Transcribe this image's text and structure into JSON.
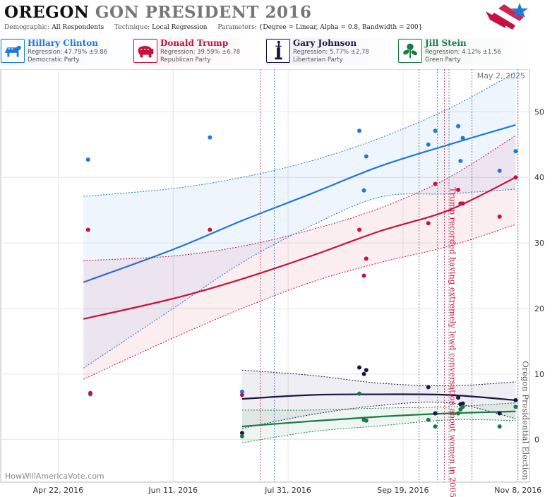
{
  "header": {
    "title_state": "OREGON",
    "title_rest": "GON PRESIDENT 2016",
    "demographic_label": "Demographic:",
    "demographic_value": "All Respondents",
    "technique_label": "Technique:",
    "technique_value": "Local Regression",
    "parameters_label": "Parameters:",
    "parameters_value": "{Degree = Linear, Alpha = 0.8, Bandwidth = 200}"
  },
  "logo_icon": "flag-star-icon",
  "candidates": [
    {
      "name": "Hillary Clinton",
      "regression": "Regression: 47.79% ±9.86",
      "party": "Democratic Party",
      "color": "#1f78d9",
      "icon": "donkey-icon"
    },
    {
      "name": "Donald Trump",
      "regression": "Regression: 39.59% ±6.78",
      "party": "Republican Party",
      "color": "#c8103e",
      "icon": "elephant-icon"
    },
    {
      "name": "Gary Johnson",
      "regression": "Regression: 5.77% ±2.78",
      "party": "Libertarian Party",
      "color": "#1a1446",
      "icon": "statue-of-liberty-icon"
    },
    {
      "name": "Jill Stein",
      "regression": "Regression: 4.12% ±1.56",
      "party": "Green Party",
      "color": "#1a7a46",
      "icon": "leaf-flower-icon"
    }
  ],
  "chart_data": {
    "type": "scatter",
    "date_label": "May 2, 2025",
    "watermark": "HowWillAmericaVote.com",
    "x_ticks": [
      "Apr 22, 2016",
      "Jun 11, 2016",
      "Jul 31, 2016",
      "Sep 19, 2016",
      "Nov 8, 2016"
    ],
    "x_tick_dates": [
      "2016-04-22",
      "2016-06-11",
      "2016-07-31",
      "2016-09-19",
      "2016-11-08"
    ],
    "x_range": [
      "2016-03-28",
      "2016-11-13"
    ],
    "y_ticks": [
      0,
      10,
      20,
      30,
      40,
      50
    ],
    "y_range": [
      -6.5,
      56.5
    ],
    "grid": true,
    "annotations": [
      {
        "text": "Trump recorded having extremely lewd conversation about women in 2005",
        "date": "2016-10-07",
        "color": "#c8103e"
      },
      {
        "text": "Oregon Presidential Election",
        "date": "2016-11-08",
        "color": "#555555"
      }
    ],
    "event_lines": [
      {
        "date": "2016-07-19",
        "color": "#c8103e"
      },
      {
        "date": "2016-07-25",
        "color": "#1f78d9"
      },
      {
        "date": "2016-09-26",
        "color": "#555555"
      },
      {
        "date": "2016-10-04",
        "color": "#555555"
      },
      {
        "date": "2016-10-07",
        "color": "#c8103e"
      },
      {
        "date": "2016-10-09",
        "color": "#555555"
      },
      {
        "date": "2016-10-19",
        "color": "#555555"
      },
      {
        "date": "2016-11-08",
        "color": "#555555"
      }
    ],
    "series": [
      {
        "name": "Hillary Clinton",
        "color": "#1f78d9",
        "points": [
          [
            "2016-05-05",
            42.7
          ],
          [
            "2016-05-06",
            6.9
          ],
          [
            "2016-06-27",
            46.1
          ],
          [
            "2016-07-11",
            7.3
          ],
          [
            "2016-08-31",
            47.1
          ],
          [
            "2016-09-02",
            38.0
          ],
          [
            "2016-09-03",
            43.2
          ],
          [
            "2016-09-30",
            45.0
          ],
          [
            "2016-10-03",
            47.1
          ],
          [
            "2016-10-13",
            47.8
          ],
          [
            "2016-10-14",
            42.5
          ],
          [
            "2016-10-15",
            46.0
          ],
          [
            "2016-10-31",
            41.0
          ],
          [
            "2016-11-07",
            44.0
          ]
        ],
        "trend": [
          [
            "2016-05-03",
            24.0
          ],
          [
            "2016-06-11",
            29.0
          ],
          [
            "2016-07-11",
            33.4
          ],
          [
            "2016-08-10",
            37.5
          ],
          [
            "2016-09-09",
            41.7
          ],
          [
            "2016-10-09",
            45.0
          ],
          [
            "2016-11-07",
            48.0
          ]
        ],
        "upper": [
          [
            "2016-05-03",
            37.1
          ],
          [
            "2016-06-11",
            38.3
          ],
          [
            "2016-07-11",
            40.0
          ],
          [
            "2016-08-10",
            42.5
          ],
          [
            "2016-09-09",
            46.0
          ],
          [
            "2016-10-09",
            50.5
          ],
          [
            "2016-11-07",
            56.0
          ]
        ],
        "lower": [
          [
            "2016-05-03",
            10.9
          ],
          [
            "2016-06-11",
            20.0
          ],
          [
            "2016-07-11",
            27.0
          ],
          [
            "2016-08-10",
            32.6
          ],
          [
            "2016-09-09",
            37.0
          ],
          [
            "2016-10-09",
            37.5
          ],
          [
            "2016-11-07",
            38.2
          ]
        ]
      },
      {
        "name": "Donald Trump",
        "color": "#c8103e",
        "points": [
          [
            "2016-05-05",
            32.0
          ],
          [
            "2016-05-06",
            7.1
          ],
          [
            "2016-06-27",
            32.0
          ],
          [
            "2016-07-11",
            6.8
          ],
          [
            "2016-08-31",
            32.0
          ],
          [
            "2016-09-02",
            25.0
          ],
          [
            "2016-09-03",
            27.6
          ],
          [
            "2016-09-30",
            33.0
          ],
          [
            "2016-10-03",
            39.0
          ],
          [
            "2016-10-13",
            38.1
          ],
          [
            "2016-10-14",
            36.0
          ],
          [
            "2016-10-15",
            36.0
          ],
          [
            "2016-10-31",
            34.0
          ],
          [
            "2016-11-07",
            40.0
          ]
        ],
        "trend": [
          [
            "2016-05-03",
            18.4
          ],
          [
            "2016-06-11",
            21.5
          ],
          [
            "2016-07-11",
            24.5
          ],
          [
            "2016-08-10",
            28.0
          ],
          [
            "2016-09-09",
            31.8
          ],
          [
            "2016-10-09",
            35.0
          ],
          [
            "2016-11-07",
            40.0
          ]
        ],
        "upper": [
          [
            "2016-05-03",
            27.3
          ],
          [
            "2016-06-11",
            28.0
          ],
          [
            "2016-07-11",
            29.5
          ],
          [
            "2016-08-10",
            32.0
          ],
          [
            "2016-09-09",
            35.3
          ],
          [
            "2016-10-09",
            40.0
          ],
          [
            "2016-11-07",
            46.4
          ]
        ],
        "lower": [
          [
            "2016-05-03",
            9.2
          ],
          [
            "2016-06-11",
            15.5
          ],
          [
            "2016-07-11",
            20.0
          ],
          [
            "2016-08-10",
            24.0
          ],
          [
            "2016-09-09",
            27.0
          ],
          [
            "2016-10-09",
            29.5
          ],
          [
            "2016-11-07",
            32.8
          ]
        ]
      },
      {
        "name": "Gary Johnson",
        "color": "#1a1446",
        "points": [
          [
            "2016-07-11",
            1.0
          ],
          [
            "2016-08-31",
            11.0
          ],
          [
            "2016-09-02",
            10.0
          ],
          [
            "2016-09-03",
            10.6
          ],
          [
            "2016-09-30",
            8.0
          ],
          [
            "2016-10-03",
            4.0
          ],
          [
            "2016-10-13",
            6.4
          ],
          [
            "2016-10-14",
            5.4
          ],
          [
            "2016-10-15",
            5.5
          ],
          [
            "2016-10-31",
            4.0
          ],
          [
            "2016-11-07",
            6.0
          ]
        ],
        "trend": [
          [
            "2016-07-11",
            6.2
          ],
          [
            "2016-08-10",
            6.8
          ],
          [
            "2016-09-09",
            6.9
          ],
          [
            "2016-10-09",
            6.8
          ],
          [
            "2016-11-07",
            6.0
          ]
        ],
        "upper": [
          [
            "2016-07-11",
            10.6
          ],
          [
            "2016-08-10",
            9.8
          ],
          [
            "2016-09-09",
            8.6
          ],
          [
            "2016-10-09",
            8.2
          ],
          [
            "2016-11-07",
            8.8
          ]
        ],
        "lower": [
          [
            "2016-07-11",
            1.7
          ],
          [
            "2016-08-10",
            3.8
          ],
          [
            "2016-09-09",
            5.2
          ],
          [
            "2016-10-09",
            5.6
          ],
          [
            "2016-11-07",
            3.2
          ]
        ]
      },
      {
        "name": "Jill Stein",
        "color": "#1a7a46",
        "points": [
          [
            "2016-07-11",
            0.5
          ],
          [
            "2016-08-31",
            7.0
          ],
          [
            "2016-09-02",
            3.0
          ],
          [
            "2016-09-03",
            2.9
          ],
          [
            "2016-09-30",
            3.0
          ],
          [
            "2016-10-03",
            2.0
          ],
          [
            "2016-10-13",
            4.0
          ],
          [
            "2016-10-14",
            4.6
          ],
          [
            "2016-10-15",
            5.0
          ],
          [
            "2016-10-31",
            2.0
          ],
          [
            "2016-11-07",
            5.0
          ]
        ],
        "trend": [
          [
            "2016-07-11",
            2.0
          ],
          [
            "2016-08-10",
            2.8
          ],
          [
            "2016-09-09",
            3.5
          ],
          [
            "2016-10-09",
            4.0
          ],
          [
            "2016-11-07",
            4.3
          ]
        ],
        "upper": [
          [
            "2016-07-11",
            4.5
          ],
          [
            "2016-08-10",
            4.5
          ],
          [
            "2016-09-09",
            4.8
          ],
          [
            "2016-10-09",
            5.0
          ],
          [
            "2016-11-07",
            5.6
          ]
        ],
        "lower": [
          [
            "2016-07-11",
            -0.5
          ],
          [
            "2016-08-10",
            1.2
          ],
          [
            "2016-09-09",
            2.1
          ],
          [
            "2016-10-09",
            3.0
          ],
          [
            "2016-11-07",
            2.9
          ]
        ]
      }
    ]
  }
}
